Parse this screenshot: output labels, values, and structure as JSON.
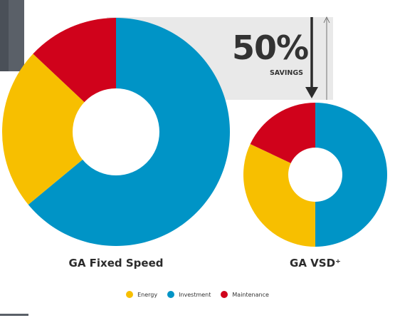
{
  "chart_data": [
    {
      "type": "donut",
      "title": "GA Fixed Speed",
      "series": [
        {
          "name": "Investment",
          "value": 64
        },
        {
          "name": "Energy",
          "value": 23
        },
        {
          "name": "Maintenance",
          "value": 13
        }
      ]
    },
    {
      "type": "donut",
      "title": "GA VSD⁺",
      "series": [
        {
          "name": "Investment",
          "value": 50
        },
        {
          "name": "Energy",
          "value": 32
        },
        {
          "name": "Maintenance",
          "value": 18
        }
      ]
    }
  ],
  "callout": {
    "percent": "50%",
    "label": "SAVINGS"
  },
  "legend": [
    {
      "name": "Energy",
      "color": "#f7bf00"
    },
    {
      "name": "Investment",
      "color": "#0094c6"
    },
    {
      "name": "Maintenance",
      "color": "#d0021b"
    }
  ],
  "colors": {
    "Energy": "#f7bf00",
    "Investment": "#0094c6",
    "Maintenance": "#d0021b",
    "callout_bg": "#e9e9e9",
    "dark_panel": "#5a6068"
  }
}
